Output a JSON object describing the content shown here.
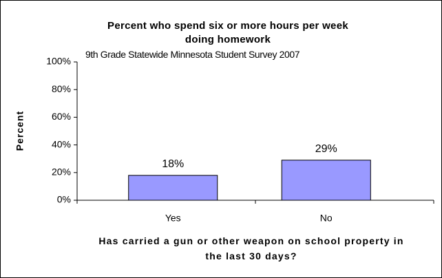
{
  "chart_data": {
    "type": "bar",
    "title": "Percent who spend six or more hours per week doing homework",
    "subtitle": "9th Grade Statewide Minnesota Student Survey 2007",
    "x_label": "Has carried a gun or other weapon on school property in the last 30 days?",
    "y_label": "Percent",
    "categories": [
      "Yes",
      "No"
    ],
    "values": [
      18,
      29
    ],
    "value_labels": [
      "18%",
      "29%"
    ],
    "color": "#9999ff",
    "ylim": [
      0,
      100
    ],
    "yticks": [
      {
        "value": 0,
        "label": "0%"
      },
      {
        "value": 20,
        "label": "20%"
      },
      {
        "value": 40,
        "label": "40%"
      },
      {
        "value": 60,
        "label": "60%"
      },
      {
        "value": 80,
        "label": "80%"
      },
      {
        "value": 100,
        "label": "100%"
      }
    ],
    "grid": false
  }
}
